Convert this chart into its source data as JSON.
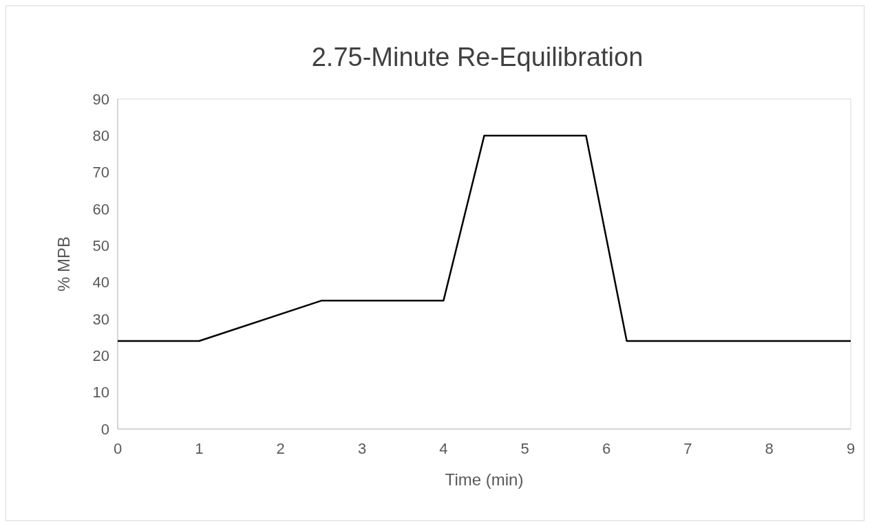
{
  "chart_data": {
    "type": "line",
    "title": "2.75-Minute Re-Equilibration",
    "xlabel": "Time (min)",
    "ylabel": "% MPB",
    "x": [
      0,
      1,
      2.5,
      4,
      4.5,
      5.75,
      6.25,
      9
    ],
    "series": [
      {
        "color": "#000000",
        "values": [
          24,
          24,
          35,
          35,
          80,
          80,
          24,
          24
        ]
      }
    ],
    "xlim": [
      0,
      9
    ],
    "xticks": [
      0,
      1,
      2,
      3,
      4,
      5,
      6,
      7,
      8,
      9
    ],
    "ylim": [
      0,
      90
    ],
    "yticks": [
      0,
      10,
      20,
      30,
      40,
      50,
      60,
      70,
      80,
      90
    ],
    "marker": "none",
    "line_style": "solid"
  }
}
